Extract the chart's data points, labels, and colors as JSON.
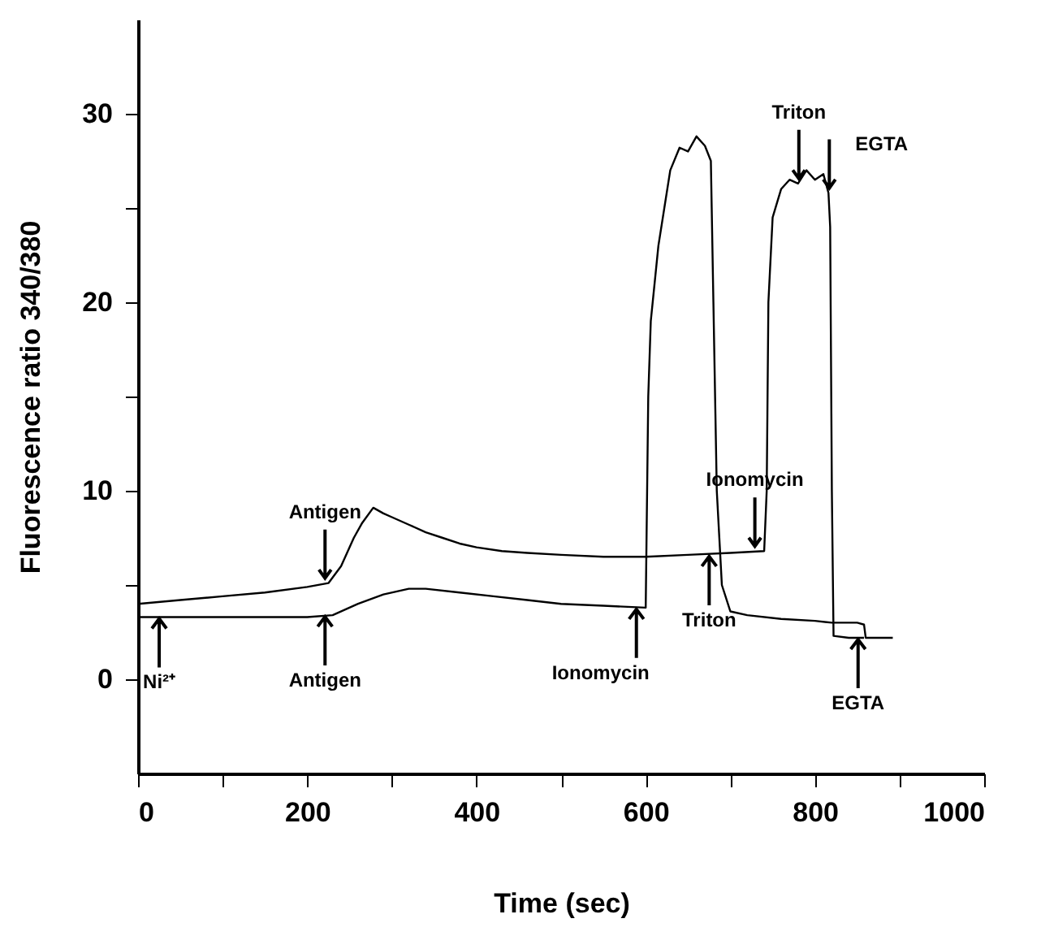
{
  "chart_data": {
    "type": "line",
    "xlabel": "Time (sec)",
    "ylabel": "Fluorescence ratio 340/380",
    "xlim": [
      0,
      1000
    ],
    "ylim": [
      -5,
      35
    ],
    "xticks": [
      0,
      {
        "value": 100,
        "label": null
      },
      200,
      {
        "value": 300,
        "label": null
      },
      400,
      {
        "value": 500,
        "label": null
      },
      600,
      {
        "value": 700,
        "label": null
      },
      800,
      {
        "value": 900,
        "label": null
      },
      {
        "value": 1000,
        "label": "1000"
      }
    ],
    "yticks": [
      0,
      {
        "value": 5,
        "label": null
      },
      10,
      {
        "value": 15,
        "label": null
      },
      20,
      {
        "value": 25,
        "label": null
      },
      30
    ],
    "series": [
      {
        "color": "#000000",
        "x": [
          0,
          50,
          100,
          150,
          200,
          225,
          240,
          255,
          265,
          278,
          290,
          300,
          320,
          340,
          360,
          380,
          400,
          430,
          460,
          500,
          550,
          600,
          650,
          700,
          740,
          743,
          745,
          750,
          760,
          770,
          780,
          790,
          800,
          810,
          816,
          818,
          820,
          822,
          840,
          858
        ],
        "values": [
          4.0,
          4.2,
          4.4,
          4.6,
          4.9,
          5.1,
          6.0,
          7.5,
          8.3,
          9.1,
          8.8,
          8.6,
          8.2,
          7.8,
          7.5,
          7.2,
          7.0,
          6.8,
          6.7,
          6.6,
          6.5,
          6.5,
          6.6,
          6.7,
          6.8,
          10,
          20,
          24.5,
          26.0,
          26.5,
          26.3,
          27.0,
          26.5,
          26.8,
          25.8,
          24,
          10,
          2.3,
          2.2,
          2.2
        ]
      },
      {
        "color": "#000000",
        "x": [
          0,
          100,
          200,
          230,
          260,
          290,
          320,
          340,
          380,
          420,
          460,
          500,
          550,
          600,
          603,
          606,
          615,
          629,
          640,
          650,
          660,
          670,
          677,
          680,
          684,
          690,
          700,
          720,
          760,
          800,
          820,
          850,
          858,
          860,
          892
        ],
        "values": [
          3.3,
          3.3,
          3.3,
          3.4,
          4.0,
          4.5,
          4.8,
          4.8,
          4.6,
          4.4,
          4.2,
          4.0,
          3.9,
          3.8,
          15,
          19,
          23,
          27,
          28.2,
          28.0,
          28.8,
          28.3,
          27.5,
          20,
          10,
          5,
          3.6,
          3.4,
          3.2,
          3.1,
          3.0,
          3.0,
          2.9,
          2.2,
          2.2
        ]
      }
    ],
    "annotations": [
      {
        "text": "Ni²⁺",
        "x": 25,
        "y": 3.3
      },
      {
        "text": "Antigen",
        "x": 221,
        "y": 3.4
      },
      {
        "text": "Antigen",
        "x": 221,
        "y": 5.1
      },
      {
        "text": "Ionomycin",
        "x": 589,
        "y": 3.8
      },
      {
        "text": "Triton",
        "x": 675,
        "y": 6.6
      },
      {
        "text": "Ionomycin",
        "x": 729,
        "y": 6.8
      },
      {
        "text": "Triton",
        "x": 781,
        "y": 26.3
      },
      {
        "text": "EGTA",
        "x": 817,
        "y": 25.8
      },
      {
        "text": "EGTA",
        "x": 851,
        "y": 2.2
      }
    ]
  }
}
